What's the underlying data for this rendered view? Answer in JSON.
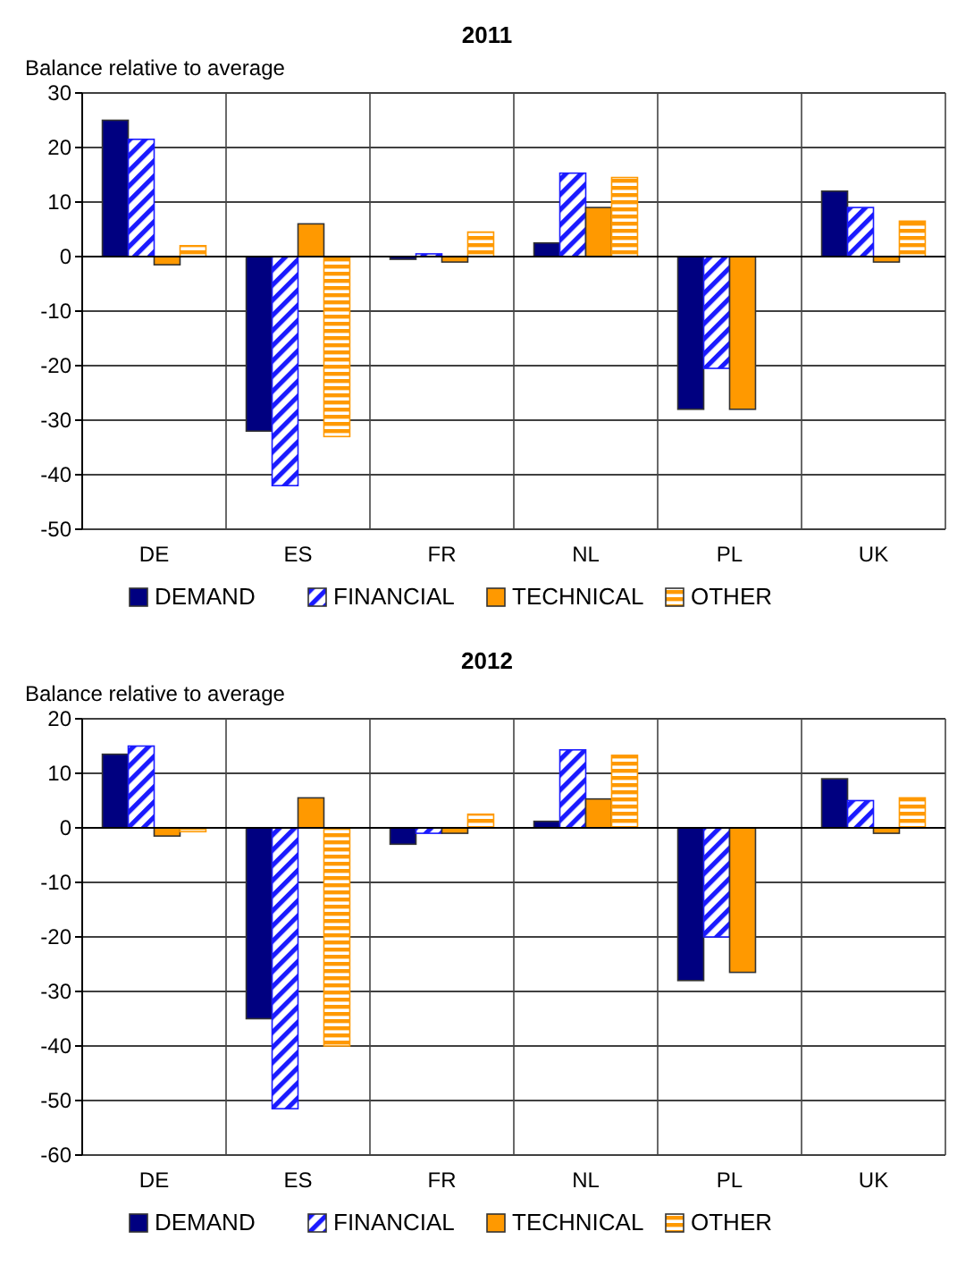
{
  "chart_data": [
    {
      "type": "bar",
      "title": "2011",
      "ylabel": "Balance relative to average",
      "categories": [
        "DE",
        "ES",
        "FR",
        "NL",
        "PL",
        "UK"
      ],
      "ylim": [
        -50,
        30
      ],
      "yticks": [
        -50,
        -40,
        -30,
        -20,
        -10,
        0,
        10,
        20,
        30
      ],
      "grid": true,
      "legend": "bottom",
      "series": [
        {
          "name": "DEMAND",
          "color": "#000080",
          "values": [
            25,
            -32,
            -0.5,
            2.5,
            -28,
            12
          ]
        },
        {
          "name": "FINANCIAL",
          "color": "#1a1aff",
          "values": [
            21.5,
            -42,
            0.5,
            15.3,
            -20.5,
            9
          ]
        },
        {
          "name": "TECHNICAL",
          "color": "#ff9900",
          "values": [
            -1.5,
            6,
            -1,
            9,
            -28,
            -1
          ]
        },
        {
          "name": "OTHER",
          "color": "#ff9900",
          "values": [
            2,
            -33,
            4.5,
            14.5,
            null,
            6.5
          ]
        }
      ]
    },
    {
      "type": "bar",
      "title": "2012",
      "ylabel": "Balance relative to average",
      "categories": [
        "DE",
        "ES",
        "FR",
        "NL",
        "PL",
        "UK"
      ],
      "ylim": [
        -60,
        20
      ],
      "yticks": [
        -60,
        -50,
        -40,
        -30,
        -20,
        -10,
        0,
        10,
        20
      ],
      "grid": true,
      "legend": "bottom",
      "series": [
        {
          "name": "DEMAND",
          "color": "#000080",
          "values": [
            13.5,
            -35,
            -3,
            1.2,
            -28,
            9
          ]
        },
        {
          "name": "FINANCIAL",
          "color": "#1a1aff",
          "values": [
            15,
            -51.5,
            -1,
            14.3,
            -20,
            5
          ]
        },
        {
          "name": "TECHNICAL",
          "color": "#ff9900",
          "values": [
            -1.5,
            5.5,
            -1,
            5.3,
            -26.5,
            -1
          ]
        },
        {
          "name": "OTHER",
          "color": "#ff9900",
          "values": [
            -0.7,
            -40,
            2.5,
            13.3,
            null,
            5.5
          ]
        }
      ]
    }
  ]
}
